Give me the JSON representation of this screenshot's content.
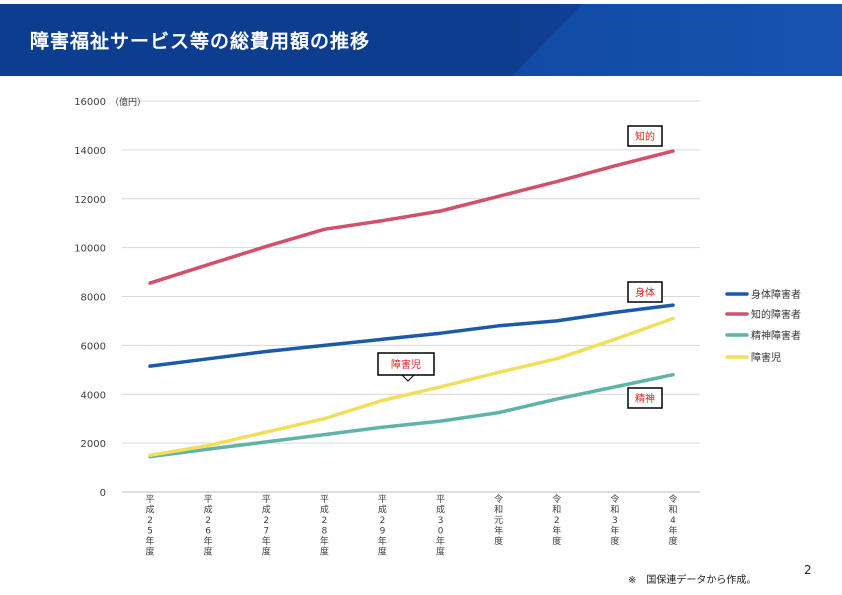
{
  "header": {
    "title": "障害福祉サービス等の総費用額の推移"
  },
  "footnote": "※　国保連データから作成。",
  "page_number": "2",
  "chart_data": {
    "type": "line",
    "title": "",
    "xlabel": "",
    "ylabel": "",
    "y_unit": "（億円）",
    "ylim": [
      0,
      16000
    ],
    "yticks": [
      0,
      2000,
      4000,
      6000,
      8000,
      10000,
      12000,
      14000,
      16000
    ],
    "grid": true,
    "legend_position": "right",
    "categories": [
      "平成25年度",
      "平成26年度",
      "平成27年度",
      "平成28年度",
      "平成29年度",
      "平成30年度",
      "令和元年度",
      "令和2年度",
      "令和3年度",
      "令和4年度"
    ],
    "series": [
      {
        "name": "身体障害者",
        "color": "#1b5aa8",
        "values": [
          5150,
          5450,
          5750,
          6000,
          6250,
          6500,
          6800,
          7000,
          7350,
          7650
        ]
      },
      {
        "name": "知的障害者",
        "color": "#d3506a",
        "values": [
          8550,
          9300,
          10050,
          10750,
          11100,
          11500,
          12100,
          12700,
          13350,
          13950
        ]
      },
      {
        "name": "精神障害者",
        "color": "#5fb3a8",
        "values": [
          1450,
          1750,
          2050,
          2350,
          2650,
          2900,
          3250,
          3800,
          4300,
          4800
        ]
      },
      {
        "name": "障害児",
        "color": "#f0df5a",
        "values": [
          1500,
          1900,
          2450,
          3000,
          3750,
          4300,
          4900,
          5450,
          6250,
          7100
        ]
      }
    ],
    "annotations": [
      {
        "text": "知的",
        "series": 1
      },
      {
        "text": "身体",
        "series": 0
      },
      {
        "text": "障害児",
        "series": 3
      },
      {
        "text": "精神",
        "series": 2
      }
    ]
  }
}
